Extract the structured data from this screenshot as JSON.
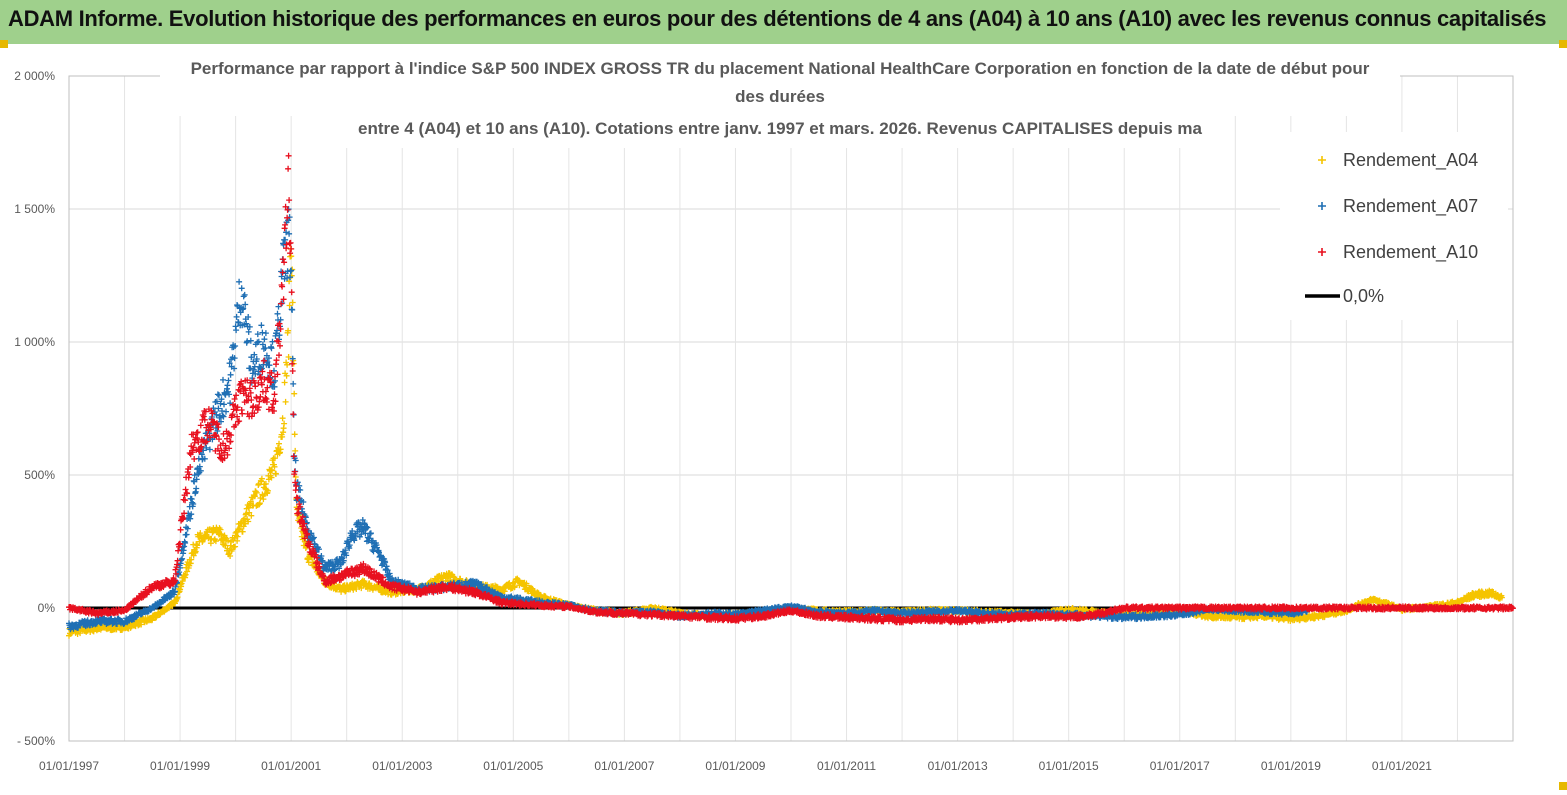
{
  "banner": {
    "title": "ADAM Informe. Evolution historique des performances en euros pour des détentions de 4 ans (A04) à 10 ans (A10) avec les revenus connus capitalisés"
  },
  "chart_data": {
    "type": "scatter",
    "title_lines": [
      "Performance par rapport à l'indice S&P 500 INDEX GROSS TR  du placement National HealthCare Corporation en fonction de la date de début pour",
      "des durées",
      "entre 4 (A04) et 10 ans (A10). Cotations entre janv. 1997 et mars. 2026. Revenus CAPITALISES depuis ma"
    ],
    "x_start_year": 1997,
    "x_end_year": 2023,
    "x_tick_labels": [
      "01/01/1997",
      "01/01/1999",
      "01/01/2001",
      "01/01/2003",
      "01/01/2005",
      "01/01/2007",
      "01/01/2009",
      "01/01/2011",
      "01/01/2013",
      "01/01/2015",
      "01/01/2017",
      "01/01/2019",
      "01/01/2021"
    ],
    "ylim": [
      -500,
      2000
    ],
    "y_ticks": [
      -500,
      0,
      500,
      1000,
      1500,
      2000
    ],
    "y_tick_labels": [
      "- 500%",
      "0%",
      "500%",
      "1 000%",
      "1 500%",
      "2 000%"
    ],
    "grid": true,
    "legend_position": "top-right",
    "series": [
      {
        "name": "Rendement_A04",
        "color": "#f5c400",
        "marker": "+",
        "points": [
          [
            1997.0,
            -90
          ],
          [
            1997.5,
            -75
          ],
          [
            1998.0,
            -70
          ],
          [
            1998.5,
            -40
          ],
          [
            1998.9,
            20
          ],
          [
            1999.3,
            250
          ],
          [
            1999.7,
            280
          ],
          [
            1999.9,
            220
          ],
          [
            2000.2,
            350
          ],
          [
            2000.4,
            420
          ],
          [
            2000.7,
            520
          ],
          [
            2000.85,
            700
          ],
          [
            2000.95,
            1000
          ],
          [
            2001.0,
            1450
          ],
          [
            2001.05,
            800
          ],
          [
            2001.1,
            350
          ],
          [
            2001.3,
            200
          ],
          [
            2001.6,
            100
          ],
          [
            2001.9,
            70
          ],
          [
            2002.3,
            90
          ],
          [
            2002.8,
            60
          ],
          [
            2003.3,
            70
          ],
          [
            2003.8,
            120
          ],
          [
            2004.3,
            80
          ],
          [
            2004.8,
            70
          ],
          [
            2005.1,
            100
          ],
          [
            2005.5,
            40
          ],
          [
            2006.0,
            10
          ],
          [
            2006.5,
            -10
          ],
          [
            2007.0,
            -20
          ],
          [
            2007.5,
            0
          ],
          [
            2008.0,
            -20
          ],
          [
            2008.5,
            -30
          ],
          [
            2009.0,
            -25
          ],
          [
            2009.5,
            -20
          ],
          [
            2010.0,
            0
          ],
          [
            2010.5,
            -10
          ],
          [
            2011.0,
            -15
          ],
          [
            2011.5,
            -10
          ],
          [
            2012.0,
            -15
          ],
          [
            2012.5,
            -10
          ],
          [
            2013.0,
            -10
          ],
          [
            2013.5,
            -15
          ],
          [
            2014.0,
            -20
          ],
          [
            2014.5,
            -25
          ],
          [
            2015.0,
            -5
          ],
          [
            2015.5,
            -15
          ],
          [
            2016.0,
            -25
          ],
          [
            2016.5,
            -20
          ],
          [
            2017.0,
            -10
          ],
          [
            2017.5,
            -30
          ],
          [
            2018.0,
            -35
          ],
          [
            2018.5,
            -30
          ],
          [
            2019.0,
            -40
          ],
          [
            2019.5,
            -30
          ],
          [
            2020.0,
            -10
          ],
          [
            2020.3,
            20
          ],
          [
            2020.5,
            30
          ],
          [
            2020.8,
            10
          ],
          [
            2021.0,
            -5
          ],
          [
            2021.5,
            5
          ],
          [
            2022.0,
            20
          ],
          [
            2022.3,
            50
          ],
          [
            2022.6,
            55
          ],
          [
            2022.8,
            40
          ]
        ]
      },
      {
        "name": "Rendement_A07",
        "color": "#1f6fb4",
        "marker": "+",
        "points": [
          [
            1997.0,
            -70
          ],
          [
            1997.5,
            -50
          ],
          [
            1998.0,
            -50
          ],
          [
            1998.5,
            0
          ],
          [
            1998.9,
            60
          ],
          [
            1999.3,
            500
          ],
          [
            1999.6,
            700
          ],
          [
            1999.9,
            850
          ],
          [
            2000.1,
            1200
          ],
          [
            2000.3,
            900
          ],
          [
            2000.5,
            1000
          ],
          [
            2000.7,
            900
          ],
          [
            2000.85,
            1250
          ],
          [
            2000.95,
            1400
          ],
          [
            2001.0,
            1300
          ],
          [
            2001.05,
            600
          ],
          [
            2001.1,
            450
          ],
          [
            2001.3,
            300
          ],
          [
            2001.6,
            150
          ],
          [
            2001.9,
            170
          ],
          [
            2002.1,
            280
          ],
          [
            2002.3,
            300
          ],
          [
            2002.6,
            200
          ],
          [
            2002.8,
            100
          ],
          [
            2003.3,
            70
          ],
          [
            2003.8,
            80
          ],
          [
            2004.3,
            90
          ],
          [
            2004.8,
            40
          ],
          [
            2005.5,
            20
          ],
          [
            2006.0,
            10
          ],
          [
            2006.5,
            -10
          ],
          [
            2007.0,
            -20
          ],
          [
            2007.5,
            -15
          ],
          [
            2008.0,
            -30
          ],
          [
            2008.5,
            -20
          ],
          [
            2009.0,
            -25
          ],
          [
            2009.5,
            -10
          ],
          [
            2010.0,
            5
          ],
          [
            2010.5,
            -15
          ],
          [
            2011.0,
            -20
          ],
          [
            2011.5,
            -10
          ],
          [
            2012.0,
            -20
          ],
          [
            2012.5,
            -15
          ],
          [
            2013.0,
            -10
          ],
          [
            2013.5,
            -20
          ],
          [
            2014.0,
            -25
          ],
          [
            2014.5,
            -20
          ],
          [
            2015.0,
            -25
          ],
          [
            2015.5,
            -30
          ],
          [
            2016.0,
            -35
          ],
          [
            2016.5,
            -30
          ],
          [
            2017.0,
            -25
          ],
          [
            2017.5,
            -5
          ],
          [
            2018.0,
            -10
          ],
          [
            2018.5,
            -15
          ],
          [
            2019.0,
            -20
          ],
          [
            2019.3,
            -10
          ]
        ]
      },
      {
        "name": "Rendement_A10",
        "color": "#e8101f",
        "marker": "+",
        "points": [
          [
            1997.0,
            0
          ],
          [
            1997.5,
            -20
          ],
          [
            1998.0,
            -10
          ],
          [
            1998.5,
            80
          ],
          [
            1998.9,
            100
          ],
          [
            1999.2,
            600
          ],
          [
            1999.5,
            700
          ],
          [
            1999.8,
            600
          ],
          [
            2000.1,
            800
          ],
          [
            2000.3,
            780
          ],
          [
            2000.5,
            850
          ],
          [
            2000.7,
            800
          ],
          [
            2000.85,
            1200
          ],
          [
            2000.95,
            1600
          ],
          [
            2001.0,
            1300
          ],
          [
            2001.05,
            500
          ],
          [
            2001.1,
            400
          ],
          [
            2001.3,
            250
          ],
          [
            2001.6,
            100
          ],
          [
            2001.9,
            120
          ],
          [
            2002.3,
            150
          ],
          [
            2002.8,
            80
          ],
          [
            2003.3,
            60
          ],
          [
            2003.8,
            80
          ],
          [
            2004.3,
            60
          ],
          [
            2004.8,
            20
          ],
          [
            2005.5,
            10
          ],
          [
            2006.0,
            5
          ],
          [
            2006.5,
            -15
          ],
          [
            2007.0,
            -20
          ],
          [
            2007.5,
            -25
          ],
          [
            2008.0,
            -30
          ],
          [
            2008.5,
            -35
          ],
          [
            2009.0,
            -40
          ],
          [
            2009.5,
            -30
          ],
          [
            2010.0,
            -10
          ],
          [
            2010.5,
            -30
          ],
          [
            2011.0,
            -35
          ],
          [
            2011.5,
            -40
          ],
          [
            2012.0,
            -45
          ],
          [
            2012.5,
            -40
          ],
          [
            2013.0,
            -45
          ],
          [
            2013.5,
            -40
          ],
          [
            2014.0,
            -35
          ],
          [
            2014.5,
            -30
          ],
          [
            2015.0,
            -35
          ],
          [
            2015.5,
            -25
          ],
          [
            2016.0,
            0
          ],
          [
            2016.5,
            0
          ],
          [
            2017.0,
            0
          ],
          [
            2018.0,
            0
          ],
          [
            2019.0,
            0
          ],
          [
            2020.0,
            0
          ],
          [
            2021.0,
            0
          ],
          [
            2022.0,
            0
          ],
          [
            2023.0,
            0
          ]
        ]
      }
    ],
    "reference_line": {
      "name": "0,0%",
      "value": 0,
      "color": "#000000"
    }
  }
}
